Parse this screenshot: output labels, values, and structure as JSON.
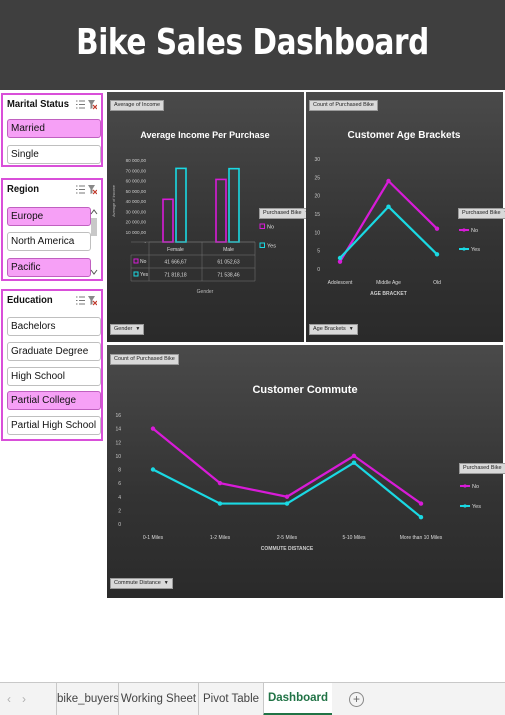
{
  "dashboard": {
    "title": "Bike Sales Dashboard"
  },
  "slicers": {
    "marital_status": {
      "title": "Marital Status",
      "items": [
        {
          "label": "Married",
          "selected": true
        },
        {
          "label": "Single",
          "selected": false
        }
      ]
    },
    "region": {
      "title": "Region",
      "items": [
        {
          "label": "Europe",
          "selected": true
        },
        {
          "label": "North America",
          "selected": false
        },
        {
          "label": "Pacific",
          "selected": true
        }
      ]
    },
    "education": {
      "title": "Education",
      "items": [
        {
          "label": "Bachelors",
          "selected": false
        },
        {
          "label": "Graduate Degree",
          "selected": false
        },
        {
          "label": "High School",
          "selected": false
        },
        {
          "label": "Partial College",
          "selected": true
        },
        {
          "label": "Partial High School",
          "selected": false
        }
      ]
    }
  },
  "charts": {
    "income": {
      "pill": "Average of Income",
      "field_button": "Gender",
      "legend_button": "Purchased Bike"
    },
    "age": {
      "pill": "Count of Purchased Bike",
      "field_button": "Age Brackets",
      "legend_button": "Purchased Bike"
    },
    "commute": {
      "pill": "Count of Purchased Bike",
      "field_button": "Commute Distance",
      "legend_button": "Purchased Bike"
    }
  },
  "chart_data": [
    {
      "type": "bar",
      "title": "Average Income Per Purchase",
      "xlabel": "Gender",
      "ylabel": "Average of Income",
      "categories": [
        "Female",
        "Male"
      ],
      "series": [
        {
          "name": "No",
          "values": [
            41666.67,
            61052.63
          ],
          "display": [
            "41 666,67",
            "61 052,63"
          ],
          "color": "#d81bd8"
        },
        {
          "name": "Yes",
          "values": [
            71818.18,
            71538.46
          ],
          "display": [
            "71 818,18",
            "71 538,46"
          ],
          "color": "#1ad9e3"
        }
      ],
      "yticks": [
        "-",
        "10 000,00",
        "20 000,00",
        "30 000,00",
        "40 000,00",
        "50 000,00",
        "60 000,00",
        "70 000,00",
        "80 000,00"
      ],
      "ylim": [
        0,
        80000
      ],
      "legend": "right"
    },
    {
      "type": "line",
      "title": "Customer Age Brackets",
      "xlabel": "AGE BRACKET",
      "categories": [
        "Adolescent",
        "Middle Age",
        "Old"
      ],
      "series": [
        {
          "name": "No",
          "values": [
            2,
            24,
            11
          ],
          "color": "#d81bd8"
        },
        {
          "name": "Yes",
          "values": [
            3,
            17,
            4
          ],
          "color": "#1ad9e3"
        }
      ],
      "yticks": [
        "0",
        "5",
        "10",
        "15",
        "20",
        "25",
        "30"
      ],
      "ylim": [
        0,
        30
      ],
      "legend": "right"
    },
    {
      "type": "line",
      "title": "Customer Commute",
      "xlabel": "COMMUTE DISTANCE",
      "categories": [
        "0-1 Miles",
        "1-2 Miles",
        "2-5 Miles",
        "5-10 Miles",
        "More than 10 Miles"
      ],
      "series": [
        {
          "name": "No",
          "values": [
            14,
            6,
            4,
            10,
            3
          ],
          "color": "#d81bd8"
        },
        {
          "name": "Yes",
          "values": [
            8,
            3,
            3,
            9,
            1
          ],
          "color": "#1ad9e3"
        }
      ],
      "yticks": [
        "0",
        "2",
        "4",
        "6",
        "8",
        "10",
        "12",
        "14",
        "16"
      ],
      "ylim": [
        0,
        16
      ],
      "legend": "right"
    }
  ],
  "sheet_tabs": [
    {
      "label": "bike_buyers",
      "active": false
    },
    {
      "label": "Working Sheet",
      "active": false
    },
    {
      "label": "Pivot Table",
      "active": false
    },
    {
      "label": "Dashboard",
      "active": true
    }
  ],
  "icons": {
    "multi_select": "multi-select-icon",
    "clear_filter": "clear-filter-icon",
    "prev": "chevron-left-icon",
    "next": "chevron-right-icon",
    "add_sheet": "plus-circle-icon"
  }
}
